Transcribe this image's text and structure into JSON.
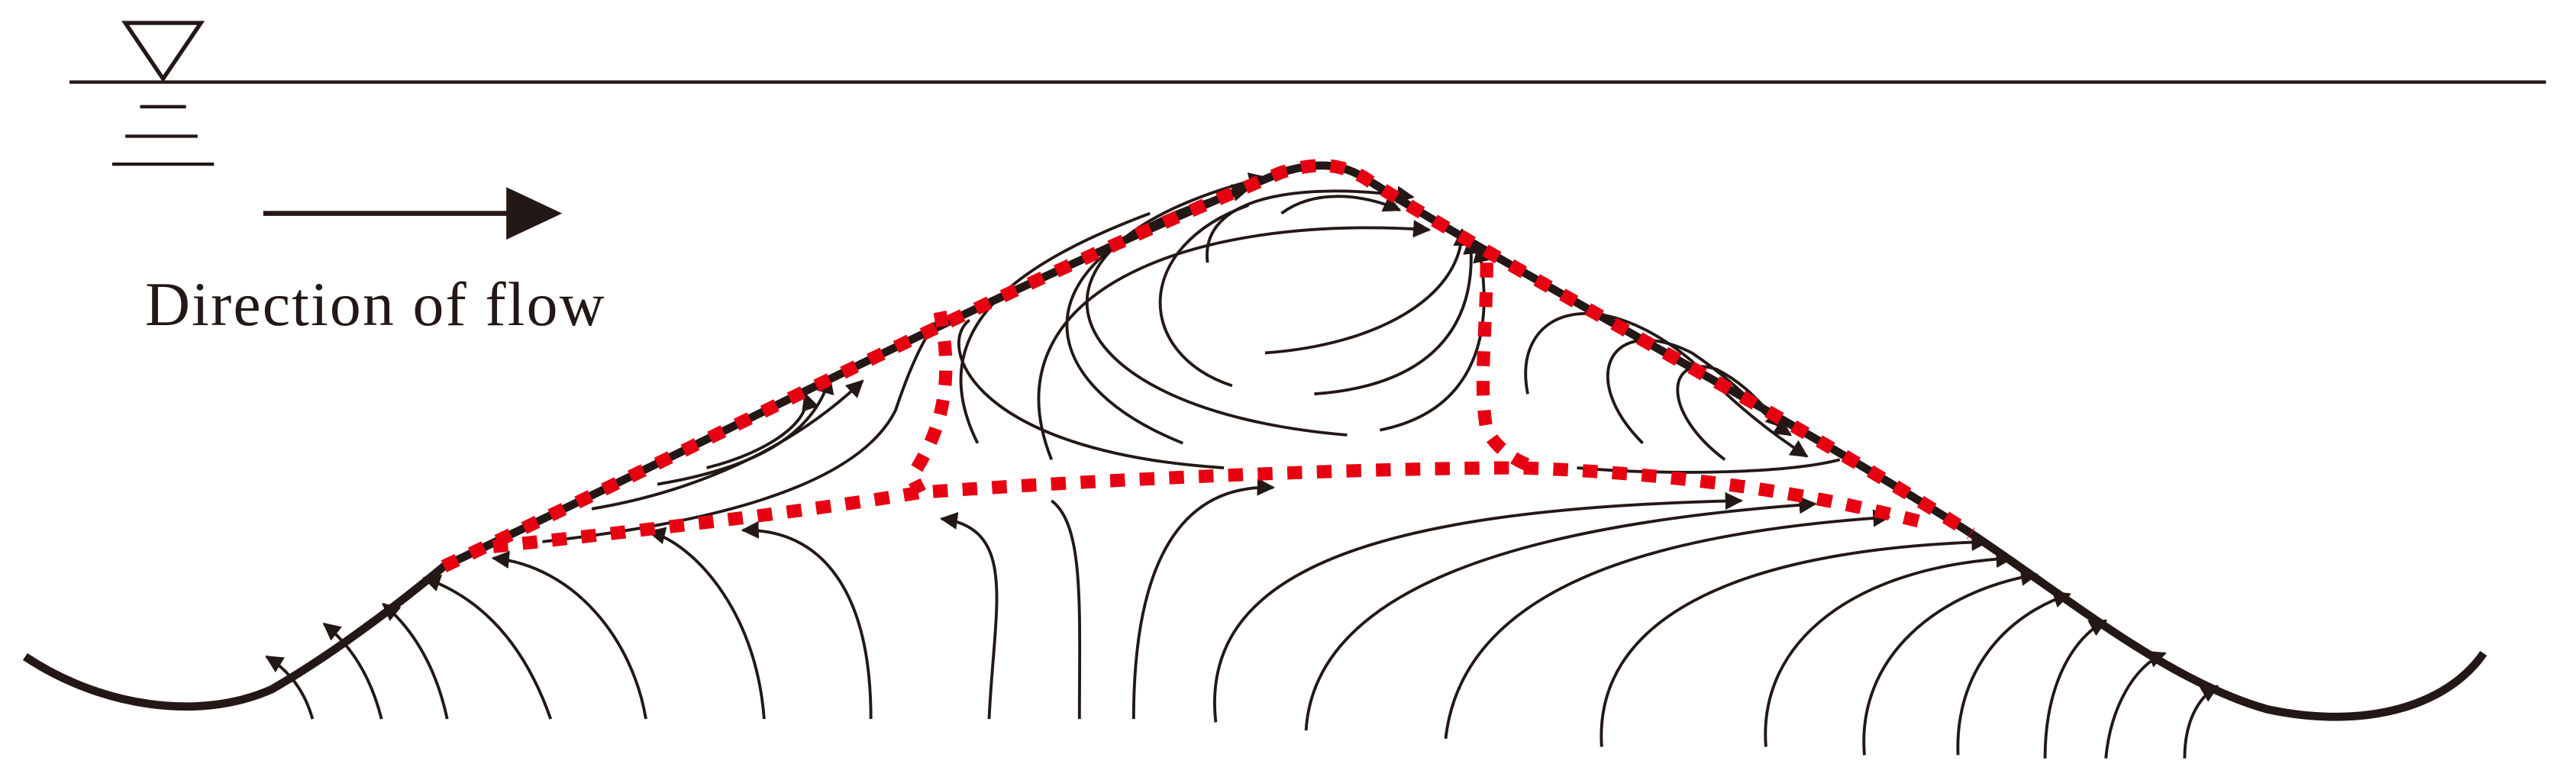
{
  "label": "Direction of flow"
}
